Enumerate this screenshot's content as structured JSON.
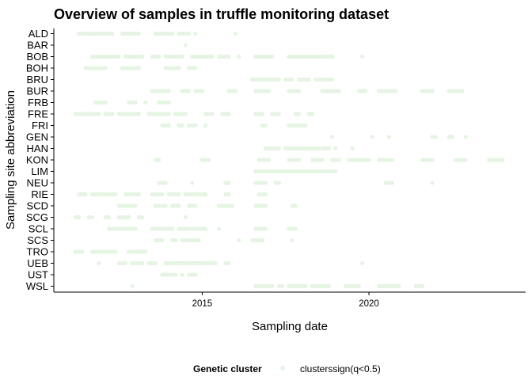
{
  "chart_data": {
    "type": "scatter",
    "title": "Overview of samples in truffle monitoring dataset",
    "xlabel": "Sampling date",
    "ylabel": "Sampling site abbreviation",
    "xlim": [
      2010.55,
      2024.7
    ],
    "x_ticks": [
      "2015",
      "2020"
    ],
    "x_tick_values": [
      2015,
      2020
    ],
    "categories": [
      "ALD",
      "BAR",
      "BOB",
      "BOH",
      "BRU",
      "BUR",
      "FRB",
      "FRE",
      "FRI",
      "GEN",
      "HAN",
      "KON",
      "LIM",
      "NEU",
      "RIE",
      "SCD",
      "SCG",
      "SCL",
      "SCS",
      "TRO",
      "UEB",
      "UST",
      "WSL"
    ],
    "grid": false,
    "legend": {
      "title": "Genetic cluster",
      "position": "bottom",
      "entries": [
        {
          "label": "clusterssign(q<0.5)",
          "color": "#e6f4e4"
        }
      ]
    },
    "point_color": "#e6f4e4",
    "series": [
      {
        "site": "ALD",
        "dates": [
          [
            2011.3,
            2012.3
          ],
          [
            2012.6,
            2013.1
          ],
          [
            2013.6,
            2014.1
          ],
          [
            2014.3,
            2014.6
          ],
          [
            2014.8,
            2014.8
          ],
          [
            2016.0,
            2016.0
          ]
        ]
      },
      {
        "site": "BAR",
        "dates": [
          [
            2014.5,
            2014.5
          ]
        ]
      },
      {
        "site": "BOB",
        "dates": [
          [
            2011.7,
            2012.5
          ],
          [
            2012.7,
            2013.2
          ],
          [
            2013.5,
            2013.7
          ],
          [
            2013.9,
            2014.4
          ],
          [
            2014.7,
            2015.3
          ],
          [
            2015.5,
            2015.8
          ],
          [
            2016.1,
            2016.1
          ],
          [
            2016.6,
            2017.1
          ],
          [
            2017.6,
            2018.5
          ],
          [
            2018.6,
            2018.9
          ],
          [
            2019.8,
            2019.8
          ]
        ]
      },
      {
        "site": "BOH",
        "dates": [
          [
            2011.5,
            2012.1
          ],
          [
            2012.6,
            2013.1
          ],
          [
            2013.9,
            2014.3
          ],
          [
            2014.6,
            2014.8
          ]
        ]
      },
      {
        "site": "BRU",
        "dates": [
          [
            2016.5,
            2017.3
          ],
          [
            2017.5,
            2017.7
          ],
          [
            2017.9,
            2018.2
          ],
          [
            2018.4,
            2018.9
          ]
        ]
      },
      {
        "site": "BUR",
        "dates": [
          [
            2013.5,
            2014.0
          ],
          [
            2014.4,
            2014.6
          ],
          [
            2014.8,
            2015.0
          ],
          [
            2015.8,
            2016.0
          ],
          [
            2016.6,
            2017.0
          ],
          [
            2017.6,
            2017.9
          ],
          [
            2018.6,
            2019.1
          ],
          [
            2019.7,
            2019.9
          ],
          [
            2020.3,
            2020.8
          ],
          [
            2021.6,
            2021.9
          ],
          [
            2022.4,
            2022.8
          ]
        ]
      },
      {
        "site": "FRB",
        "dates": [
          [
            2011.8,
            2012.1
          ],
          [
            2012.8,
            2013.0
          ],
          [
            2013.3,
            2013.3
          ],
          [
            2013.7,
            2014.0
          ]
        ]
      },
      {
        "site": "FRE",
        "dates": [
          [
            2011.2,
            2011.9
          ],
          [
            2012.1,
            2012.3
          ],
          [
            2012.5,
            2013.1
          ],
          [
            2013.4,
            2014.0
          ],
          [
            2014.2,
            2014.5
          ],
          [
            2015.1,
            2015.3
          ],
          [
            2015.6,
            2015.8
          ],
          [
            2016.6,
            2016.8
          ],
          [
            2017.1,
            2017.3
          ],
          [
            2017.8,
            2017.9
          ],
          [
            2018.2,
            2018.3
          ]
        ]
      },
      {
        "site": "FRI",
        "dates": [
          [
            2013.8,
            2014.0
          ],
          [
            2014.3,
            2014.4
          ],
          [
            2014.6,
            2014.8
          ],
          [
            2015.1,
            2015.1
          ],
          [
            2016.8,
            2016.9
          ],
          [
            2017.6,
            2018.1
          ]
        ]
      },
      {
        "site": "GEN",
        "dates": [
          [
            2018.9,
            2018.9
          ],
          [
            2020.1,
            2020.1
          ],
          [
            2020.6,
            2020.6
          ],
          [
            2021.9,
            2022.0
          ],
          [
            2022.4,
            2022.5
          ],
          [
            2022.9,
            2022.9
          ]
        ]
      },
      {
        "site": "HAN",
        "dates": [
          [
            2016.9,
            2017.3
          ],
          [
            2017.5,
            2017.8
          ],
          [
            2017.9,
            2018.5
          ],
          [
            2018.6,
            2018.8
          ],
          [
            2019.0,
            2019.0
          ],
          [
            2019.5,
            2019.5
          ]
        ]
      },
      {
        "site": "KON",
        "dates": [
          [
            2013.6,
            2013.7
          ],
          [
            2015.0,
            2015.2
          ],
          [
            2016.7,
            2017.0
          ],
          [
            2017.6,
            2017.9
          ],
          [
            2018.3,
            2018.6
          ],
          [
            2018.9,
            2019.1
          ],
          [
            2019.4,
            2020.0
          ],
          [
            2020.3,
            2020.7
          ],
          [
            2021.6,
            2021.9
          ],
          [
            2022.6,
            2022.9
          ],
          [
            2023.6,
            2024.0
          ]
        ]
      },
      {
        "site": "LIM",
        "dates": [
          [
            2016.6,
            2018.0
          ],
          [
            2018.1,
            2018.5
          ],
          [
            2018.6,
            2019.0
          ]
        ]
      },
      {
        "site": "NEU",
        "dates": [
          [
            2013.7,
            2013.9
          ],
          [
            2014.7,
            2014.7
          ],
          [
            2015.7,
            2015.8
          ],
          [
            2016.6,
            2016.9
          ],
          [
            2017.2,
            2017.3
          ],
          [
            2020.5,
            2020.7
          ],
          [
            2021.9,
            2021.9
          ]
        ]
      },
      {
        "site": "RIE",
        "dates": [
          [
            2011.3,
            2011.5
          ],
          [
            2011.7,
            2012.1
          ],
          [
            2012.2,
            2012.4
          ],
          [
            2012.7,
            2013.1
          ],
          [
            2013.5,
            2013.8
          ],
          [
            2014.0,
            2014.3
          ],
          [
            2014.5,
            2015.1
          ],
          [
            2015.7,
            2015.8
          ],
          [
            2016.7,
            2016.9
          ]
        ]
      },
      {
        "site": "SCD",
        "dates": [
          [
            2012.5,
            2013.0
          ],
          [
            2013.6,
            2013.9
          ],
          [
            2014.1,
            2014.3
          ],
          [
            2014.6,
            2014.8
          ],
          [
            2015.5,
            2015.9
          ],
          [
            2016.6,
            2016.9
          ],
          [
            2017.7,
            2017.8
          ]
        ]
      },
      {
        "site": "SCG",
        "dates": [
          [
            2011.2,
            2011.3
          ],
          [
            2011.6,
            2011.7
          ],
          [
            2012.1,
            2012.2
          ],
          [
            2012.5,
            2012.8
          ],
          [
            2013.1,
            2013.2
          ],
          [
            2014.5,
            2014.5
          ]
        ]
      },
      {
        "site": "SCL",
        "dates": [
          [
            2012.2,
            2012.4
          ],
          [
            2012.5,
            2013.0
          ],
          [
            2013.5,
            2014.1
          ],
          [
            2014.3,
            2014.6
          ],
          [
            2014.7,
            2015.1
          ],
          [
            2015.5,
            2015.5
          ],
          [
            2016.6,
            2016.9
          ],
          [
            2017.6,
            2017.8
          ]
        ]
      },
      {
        "site": "SCS",
        "dates": [
          [
            2013.6,
            2013.8
          ],
          [
            2014.1,
            2014.2
          ],
          [
            2014.4,
            2014.9
          ],
          [
            2016.1,
            2016.1
          ],
          [
            2016.5,
            2016.8
          ],
          [
            2017.7,
            2017.7
          ]
        ]
      },
      {
        "site": "TRO",
        "dates": [
          [
            2011.2,
            2011.4
          ],
          [
            2011.7,
            2012.4
          ],
          [
            2012.8,
            2013.3
          ]
        ]
      },
      {
        "site": "UEB",
        "dates": [
          [
            2011.9,
            2011.9
          ],
          [
            2012.5,
            2012.7
          ],
          [
            2012.9,
            2013.2
          ],
          [
            2013.4,
            2013.6
          ],
          [
            2013.9,
            2014.1
          ],
          [
            2014.2,
            2015.4
          ],
          [
            2015.7,
            2015.8
          ],
          [
            2019.8,
            2019.8
          ]
        ]
      },
      {
        "site": "UST",
        "dates": [
          [
            2013.8,
            2014.2
          ],
          [
            2014.4,
            2014.4
          ],
          [
            2014.6,
            2014.8
          ]
        ]
      },
      {
        "site": "WSL",
        "dates": [
          [
            2012.9,
            2012.9
          ],
          [
            2016.6,
            2017.1
          ],
          [
            2017.3,
            2017.4
          ],
          [
            2017.6,
            2018.1
          ],
          [
            2018.3,
            2018.8
          ],
          [
            2019.3,
            2019.7
          ],
          [
            2020.3,
            2020.9
          ],
          [
            2021.4,
            2021.6
          ]
        ]
      }
    ]
  }
}
